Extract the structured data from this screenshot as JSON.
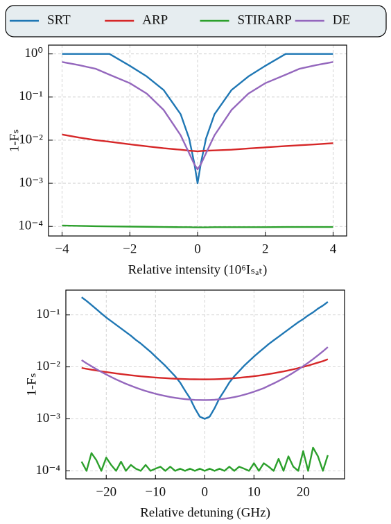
{
  "chart_data": [
    {
      "type": "line",
      "legend": "top",
      "yscale": "log",
      "grid": true,
      "xlabel": "Relative intensity (10⁶Iₛₐₜ)",
      "ylabel": "1-Fₛ",
      "x": [
        -4,
        -3.5,
        -3,
        -2.6,
        -2,
        -1.5,
        -1,
        -0.5,
        -0.25,
        -0.1,
        0,
        0.1,
        0.25,
        0.5,
        1,
        1.5,
        2,
        2.6,
        3,
        3.5,
        4
      ],
      "xlim": [
        -4.4,
        4.4
      ],
      "ylim": [
        6e-05,
        1.6
      ],
      "xticks": [
        {
          "value": -4,
          "label": "−4"
        },
        {
          "value": -2,
          "label": "−2"
        },
        0,
        2,
        4
      ],
      "yticks": [
        {
          "value": 1,
          "label": "10⁰"
        },
        {
          "value": 0.1,
          "label": "10⁻¹"
        },
        {
          "value": 0.01,
          "label": "10⁻²"
        },
        {
          "value": 0.001,
          "label": "10⁻³"
        },
        {
          "value": 0.0001,
          "label": "10⁻⁴"
        }
      ],
      "series": [
        {
          "name": "SRT",
          "color": "#1f77b4",
          "values": [
            1,
            1,
            1,
            1,
            0.53,
            0.3,
            0.145,
            0.04,
            0.011,
            0.003,
            0.001,
            0.003,
            0.011,
            0.04,
            0.145,
            0.3,
            0.53,
            1,
            1,
            1,
            1
          ]
        },
        {
          "name": "ARP",
          "color": "#d62728",
          "values": [
            0.0135,
            0.0115,
            0.01,
            0.0092,
            0.008,
            0.0072,
            0.0065,
            0.006,
            0.0057,
            0.0056,
            0.0055,
            0.0056,
            0.0057,
            0.0058,
            0.006,
            0.0064,
            0.0068,
            0.0073,
            0.0076,
            0.008,
            0.0085
          ]
        },
        {
          "name": "STIRARP",
          "color": "#2ca02c",
          "values": [
            0.000105,
            0.000103,
            0.000101,
            0.0001,
            9.9e-05,
            9.8e-05,
            9.7e-05,
            9.6e-05,
            9.6e-05,
            9.5e-05,
            9.5e-05,
            9.5e-05,
            9.5e-05,
            9.6e-05,
            9.6e-05,
            9.6e-05,
            9.6e-05,
            9.7e-05,
            9.7e-05,
            9.7e-05,
            9.7e-05
          ]
        },
        {
          "name": "DE",
          "color": "#9467bd",
          "values": [
            0.65,
            0.55,
            0.45,
            0.33,
            0.21,
            0.12,
            0.05,
            0.013,
            0.005,
            0.0028,
            0.0021,
            0.0028,
            0.005,
            0.013,
            0.05,
            0.12,
            0.21,
            0.33,
            0.45,
            0.55,
            0.65
          ]
        }
      ]
    },
    {
      "type": "line",
      "yscale": "log",
      "grid": true,
      "xlabel": "Relative detuning (GHz)",
      "ylabel": "1-Fₛ",
      "x": [
        -25,
        -24,
        -23,
        -22,
        -21,
        -20,
        -19,
        -18,
        -17,
        -16,
        -15,
        -14,
        -13,
        -12,
        -11,
        -10,
        -9,
        -8,
        -7,
        -6,
        -5,
        -4,
        -3,
        -2,
        -1,
        0,
        1,
        2,
        3,
        4,
        5,
        6,
        7,
        8,
        9,
        10,
        11,
        12,
        13,
        14,
        15,
        16,
        17,
        18,
        19,
        20,
        21,
        22,
        23,
        24,
        25
      ],
      "xlim": [
        -28.2,
        28.4
      ],
      "ylim": [
        7e-05,
        0.3
      ],
      "xticks": [
        {
          "value": -20,
          "label": "−20"
        },
        {
          "value": -10,
          "label": "−10"
        },
        0,
        10,
        20
      ],
      "yticks": [
        {
          "value": 0.1,
          "label": "10⁻¹"
        },
        {
          "value": 0.01,
          "label": "10⁻²"
        },
        {
          "value": 0.001,
          "label": "10⁻³"
        },
        {
          "value": 0.0001,
          "label": "10⁻⁴"
        }
      ],
      "series": [
        {
          "name": "SRT",
          "color": "#1f77b4",
          "values": [
            0.219,
            0.186,
            0.155,
            0.129,
            0.107,
            0.0891,
            0.0759,
            0.0646,
            0.055,
            0.0468,
            0.0398,
            0.0331,
            0.0282,
            0.0234,
            0.0195,
            0.0158,
            0.0129,
            0.0105,
            0.0083,
            0.0066,
            0.005,
            0.0035,
            0.0025,
            0.0016,
            0.0011,
            0.001,
            0.0011,
            0.0016,
            0.0025,
            0.0035,
            0.005,
            0.0066,
            0.0083,
            0.0105,
            0.0129,
            0.0158,
            0.0191,
            0.0229,
            0.0275,
            0.0324,
            0.038,
            0.0447,
            0.0525,
            0.0617,
            0.0724,
            0.0832,
            0.0977,
            0.112,
            0.132,
            0.151,
            0.178
          ]
        },
        {
          "name": "ARP",
          "color": "#d62728",
          "values": [
            0.00955,
            0.00918,
            0.00883,
            0.00851,
            0.00822,
            0.00796,
            0.00771,
            0.00748,
            0.00728,
            0.00708,
            0.0069,
            0.00675,
            0.00659,
            0.00647,
            0.00635,
            0.00624,
            0.00615,
            0.00607,
            0.00598,
            0.00593,
            0.00587,
            0.00583,
            0.00579,
            0.00577,
            0.00576,
            0.00575,
            0.00576,
            0.00579,
            0.00583,
            0.00589,
            0.00596,
            0.00606,
            0.00617,
            0.00631,
            0.00644,
            0.00661,
            0.0068,
            0.00702,
            0.00727,
            0.00754,
            0.00786,
            0.00818,
            0.00857,
            0.00898,
            0.00946,
            0.01,
            0.0106,
            0.0113,
            0.0121,
            0.0129,
            0.014
          ]
        },
        {
          "name": "STIRARP",
          "color": "#2ca02c",
          "values": [
            0.00015,
            0.0001,
            0.00022,
            0.00016,
            0.0001,
            0.00018,
            0.00013,
            0.0001,
            0.00015,
            0.0001,
            0.00013,
            0.00011,
            0.0001,
            0.00013,
            0.0001,
            0.00011,
            0.00012,
            0.0001,
            0.00012,
            0.0001,
            0.00011,
            0.0001,
            0.00011,
            0.0001,
            0.00011,
            0.0001,
            0.00011,
            0.0001,
            0.00011,
            0.0001,
            0.00012,
            0.0001,
            0.00012,
            0.00011,
            0.0001,
            0.00014,
            0.0001,
            0.00014,
            0.00012,
            0.0001,
            0.00017,
            0.0001,
            0.00019,
            0.00012,
            0.0001,
            0.00024,
            0.0001,
            0.00028,
            0.00019,
            0.0001,
            0.0002
          ]
        },
        {
          "name": "DE",
          "color": "#9467bd",
          "values": [
            0.0135,
            0.0117,
            0.0103,
            0.00903,
            0.008,
            0.00713,
            0.00638,
            0.00574,
            0.0052,
            0.00473,
            0.00434,
            0.00399,
            0.0037,
            0.00344,
            0.00323,
            0.00304,
            0.00288,
            0.00275,
            0.00263,
            0.00254,
            0.00246,
            0.0024,
            0.00235,
            0.00232,
            0.00231,
            0.0023,
            0.00231,
            0.00233,
            0.00238,
            0.00244,
            0.00252,
            0.00262,
            0.00275,
            0.00291,
            0.0031,
            0.00333,
            0.0036,
            0.0039,
            0.00434,
            0.0048,
            0.00535,
            0.006,
            0.0068,
            0.00775,
            0.0089,
            0.0103,
            0.012,
            0.0141,
            0.0167,
            0.0199,
            0.024
          ]
        }
      ]
    }
  ]
}
